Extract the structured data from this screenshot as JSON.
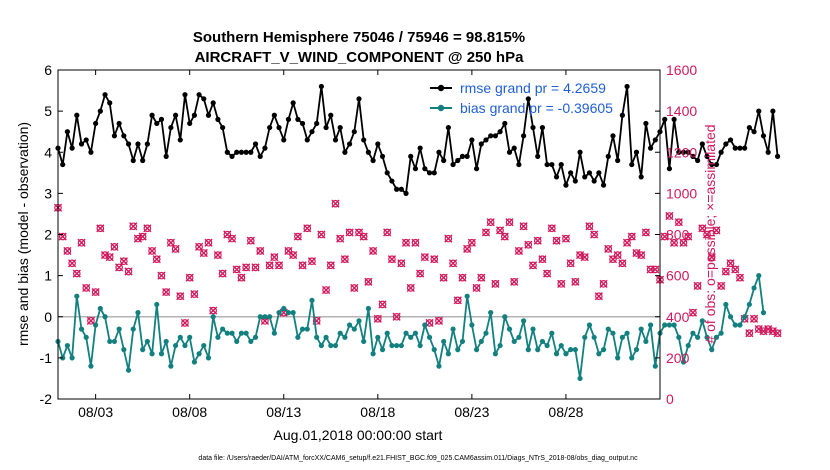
{
  "chart_data": {
    "type": "line",
    "title": "Southern Hemisphere 75046 / 75946 = 98.815%",
    "subtitle": "AIRCRAFT_V_WIND_COMPONENT @ 250 hPa",
    "xlabel": "Aug.01,2018 00:00:00 start",
    "ylabel": "rmse and bias (model - observation)",
    "y2label": "# of obs: o=possible; ×=assimilated",
    "footnote": "data file: /Users/raeder/DAI/ATM_forcXX/CAM6_setup/f.e21.FHIST_BGC.f09_025.CAM6assim.011/Diags_NTrS_2018-08/obs_diag_output.nc",
    "xlim": [
      1,
      33
    ],
    "ylim": [
      -2,
      6
    ],
    "y2lim": [
      0,
      1600
    ],
    "x_ticks": [
      3,
      8,
      13,
      18,
      23,
      28
    ],
    "x_ticklabels": [
      "08/03",
      "08/08",
      "08/13",
      "08/18",
      "08/23",
      "08/28"
    ],
    "y_ticks": [
      "-2",
      "-1",
      "0",
      "1",
      "2",
      "3",
      "4",
      "5",
      "6"
    ],
    "y2_ticks": [
      "0",
      "200",
      "400",
      "600",
      "800",
      "1000",
      "1200",
      "1400",
      "1600"
    ],
    "colors": {
      "rmse": "#000000",
      "bias": "#138080",
      "obs": "#d11a5e",
      "zero": "#b3b3b3",
      "legend_text": "#1f5fd6"
    },
    "x_start": 1,
    "x_step": 0.25,
    "series": [
      {
        "name": "rmse grand pr = 4.2659",
        "axis": "left",
        "values": [
          4.1,
          3.7,
          4.5,
          4.1,
          4.9,
          4.2,
          4.3,
          4.0,
          4.7,
          5.0,
          5.4,
          5.2,
          4.4,
          4.7,
          4.4,
          4.2,
          3.8,
          4.2,
          3.8,
          4.2,
          4.9,
          4.7,
          4.8,
          3.9,
          4.6,
          4.9,
          4.3,
          5.4,
          4.7,
          4.9,
          5.4,
          5.3,
          4.9,
          5.2,
          4.8,
          4.6,
          4.0,
          3.9,
          4.0,
          4.0,
          4.0,
          4.0,
          4.2,
          3.9,
          4.1,
          4.6,
          4.9,
          4.6,
          4.3,
          4.8,
          5.2,
          4.8,
          4.7,
          4.3,
          4.5,
          4.7,
          5.6,
          4.6,
          4.9,
          4.3,
          4.6,
          4.0,
          4.2,
          4.5,
          5.3,
          4.3,
          4.0,
          3.8,
          4.2,
          3.9,
          3.5,
          3.3,
          3.1,
          3.1,
          3.0,
          3.9,
          3.6,
          4.1,
          3.6,
          3.5,
          3.5,
          4.0,
          3.8,
          4.6,
          3.7,
          3.8,
          3.9,
          3.9,
          4.3,
          3.6,
          4.2,
          4.3,
          4.4,
          4.4,
          4.5,
          4.7,
          4.0,
          4.1,
          3.7,
          4.4,
          5.3,
          4.6,
          3.9,
          4.6,
          3.7,
          3.7,
          3.4,
          3.7,
          3.2,
          3.5,
          3.3,
          4.0,
          3.4,
          3.5,
          3.3,
          3.5,
          3.2,
          3.9,
          4.4,
          3.8,
          4.9,
          5.6,
          3.7,
          4.0,
          3.4,
          4.7,
          4.1,
          4.3,
          4.5,
          4.8,
          3.6,
          4.8,
          4.0,
          4.0,
          4.0,
          3.9,
          3.8,
          4.2,
          3.9,
          3.7,
          3.7,
          4.0,
          4.2,
          4.3,
          4.1,
          4.1,
          4.1,
          4.6,
          4.5,
          5.0,
          4.4,
          4.0,
          5.0,
          3.9
        ]
      },
      {
        "name": "bias grand pr = -0.39605",
        "axis": "left",
        "values": [
          -0.6,
          -1.0,
          -0.7,
          -1.0,
          0.5,
          -0.3,
          -0.5,
          -1.2,
          -0.2,
          0.2,
          0.0,
          -0.6,
          -0.6,
          -0.3,
          -0.8,
          -1.3,
          -0.3,
          0.1,
          -0.8,
          -0.6,
          -0.9,
          0.3,
          -0.9,
          -0.6,
          -1.2,
          -0.7,
          -0.5,
          -0.7,
          -0.5,
          -1.1,
          -0.9,
          -0.7,
          -1.0,
          0.0,
          -0.5,
          -0.3,
          -0.4,
          -0.4,
          -0.6,
          -0.4,
          -0.4,
          -0.6,
          -0.5,
          0.0,
          0.0,
          0.0,
          -0.4,
          0.1,
          0.2,
          0.1,
          0.1,
          -0.5,
          -0.3,
          -0.3,
          0.4,
          -0.5,
          -0.7,
          -0.5,
          -0.7,
          -0.7,
          -0.4,
          -0.5,
          -0.2,
          -0.3,
          -0.1,
          -0.6,
          0.2,
          -0.9,
          -0.5,
          -0.8,
          -0.4,
          -0.7,
          -0.7,
          -0.7,
          -0.4,
          -0.5,
          -0.4,
          -0.7,
          -0.2,
          -0.5,
          -0.8,
          -1.2,
          -0.6,
          -0.9,
          -0.3,
          -0.8,
          -0.6,
          0.5,
          -0.2,
          -0.8,
          -0.6,
          -0.4,
          0.1,
          -0.9,
          -0.7,
          0.0,
          -0.3,
          -0.6,
          -0.5,
          -0.1,
          -0.8,
          -0.3,
          -0.8,
          -0.6,
          -0.7,
          -0.4,
          -0.9,
          -0.7,
          -0.9,
          -0.8,
          -0.8,
          -1.5,
          -0.5,
          -0.2,
          -0.5,
          -0.9,
          -0.8,
          -0.3,
          -0.4,
          -1.0,
          -0.5,
          -0.4,
          -1.0,
          -0.8,
          -0.3,
          -0.6,
          -0.2,
          -1.2,
          -0.4,
          -0.2,
          -0.2,
          -0.2,
          -0.5,
          -1.1,
          -0.7,
          -0.4,
          -0.5,
          -0.1,
          -0.5,
          -0.8,
          -0.5,
          -0.4,
          0.3,
          0.0,
          -0.2,
          -0.2,
          0.0,
          0.3,
          0.7,
          1.0,
          0.1
        ]
      },
      {
        "name": "# of obs",
        "axis": "right",
        "values": [
          930,
          790,
          720,
          660,
          610,
          760,
          540,
          380,
          520,
          830,
          700,
          690,
          740,
          640,
          670,
          620,
          840,
          780,
          790,
          830,
          720,
          680,
          600,
          520,
          760,
          730,
          500,
          370,
          590,
          510,
          740,
          710,
          760,
          430,
          700,
          610,
          800,
          780,
          630,
          590,
          640,
          770,
          640,
          720,
          380,
          650,
          690,
          650,
          420,
          720,
          700,
          790,
          650,
          830,
          670,
          380,
          800,
          530,
          650,
          950,
          780,
          680,
          810,
          540,
          810,
          790,
          570,
          720,
          390,
          460,
          810,
          680,
          400,
          660,
          760,
          540,
          760,
          610,
          690,
          370,
          680,
          380,
          590,
          780,
          660,
          480,
          590,
          730,
          760,
          540,
          590,
          810,
          860,
          560,
          820,
          790,
          860,
          570,
          720,
          840,
          750,
          650,
          770,
          680,
          610,
          830,
          770,
          560,
          780,
          660,
          570,
          700,
          690,
          840,
          800,
          500,
          560,
          730,
          680,
          700,
          660,
          760,
          790,
          710,
          700,
          810,
          630,
          630,
          580,
          790,
          890,
          760,
          860,
          760,
          790,
          420,
          550,
          830,
          800,
          690,
          820,
          550,
          620,
          660,
          630,
          590,
          390,
          320,
          390,
          340,
          330,
          340,
          330,
          320
        ]
      }
    ]
  }
}
